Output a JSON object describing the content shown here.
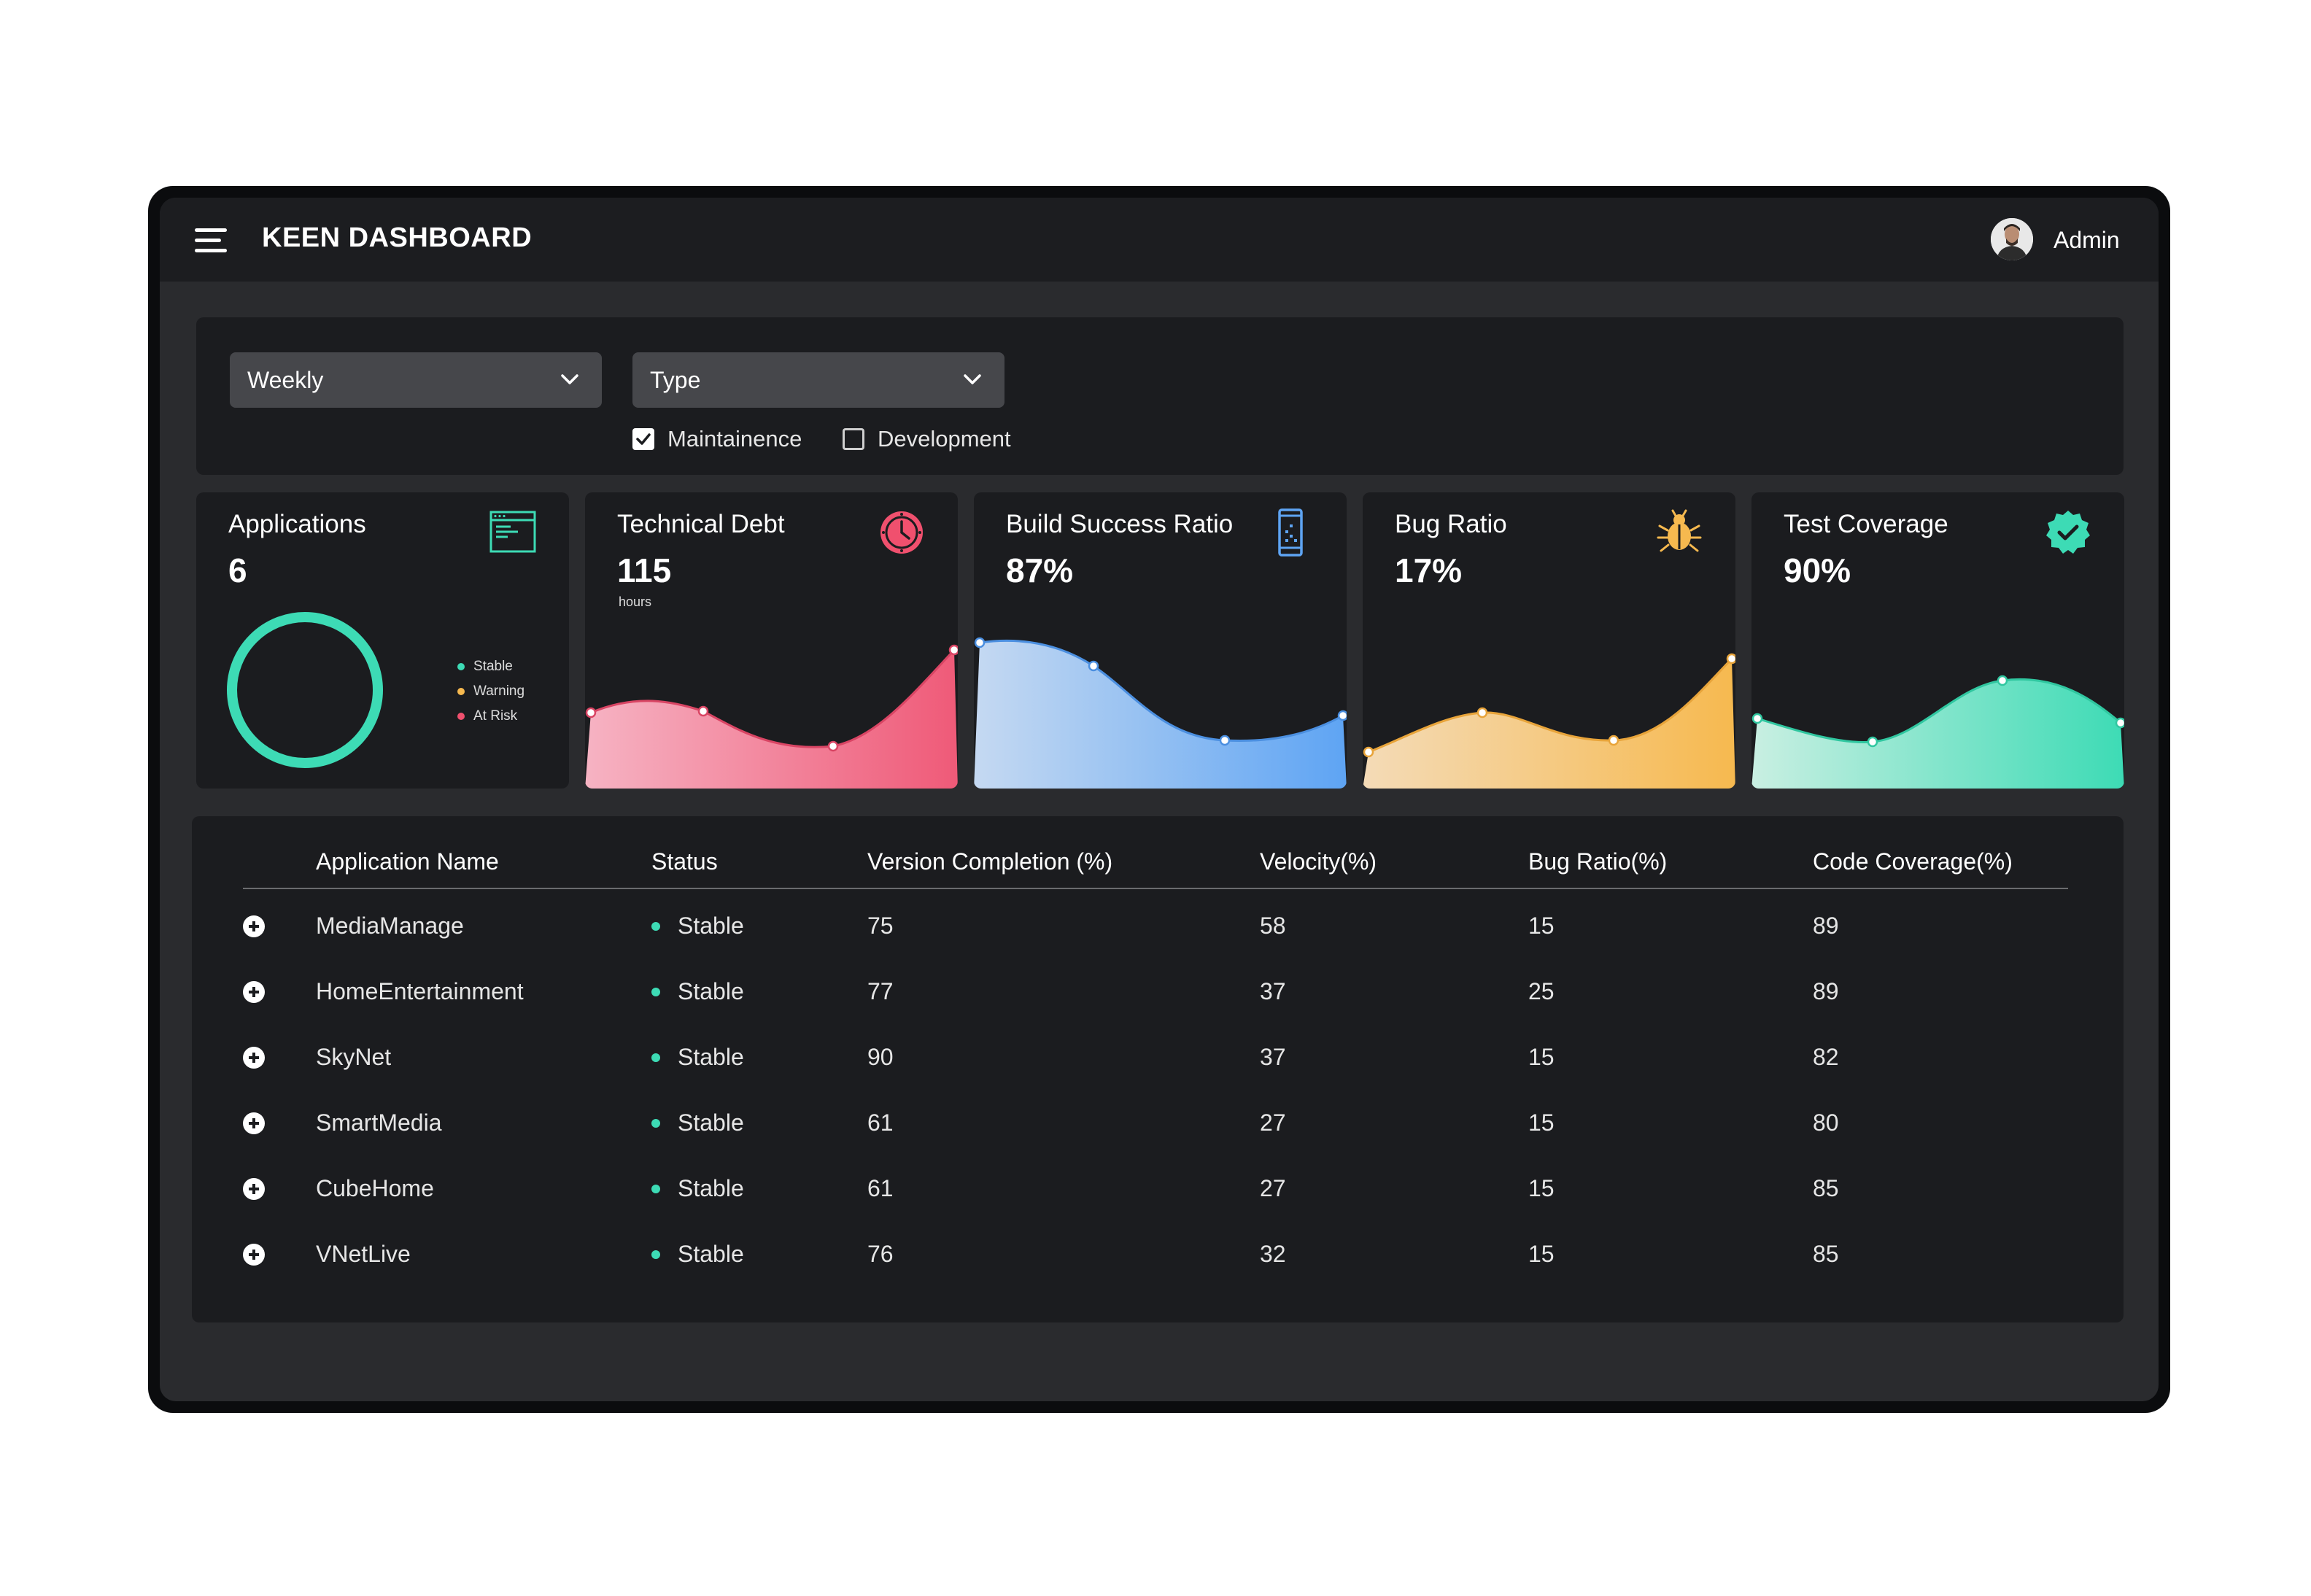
{
  "header": {
    "title": "KEEN DASHBOARD",
    "user": "Admin"
  },
  "filters": {
    "period": "Weekly",
    "type": "Type",
    "checkboxes": [
      {
        "label": "Maintainence",
        "checked": true
      },
      {
        "label": "Development",
        "checked": false
      }
    ]
  },
  "cards": {
    "applications": {
      "title": "Applications",
      "value": "6",
      "legend": [
        {
          "label": "Stable",
          "color": "#3ddbb5"
        },
        {
          "label": "Warning",
          "color": "#f6b94f"
        },
        {
          "label": "At Risk",
          "color": "#f0506e"
        }
      ],
      "ring_color": "#3ddbb5",
      "icon": "browser-window-icon"
    },
    "technical_debt": {
      "title": "Technical Debt",
      "value": "115",
      "unit": "hours",
      "icon": "clock-icon",
      "color": "#f0506e"
    },
    "build_success": {
      "title": "Build Success Ratio",
      "value": "87%",
      "icon": "mobile-icon",
      "color": "#5ea4f3"
    },
    "bug_ratio": {
      "title": "Bug Ratio",
      "value": "17%",
      "icon": "bug-icon",
      "color": "#f6b94f"
    },
    "test_coverage": {
      "title": "Test Coverage",
      "value": "90%",
      "icon": "check-badge-icon",
      "color": "#3ddbb5"
    }
  },
  "table": {
    "columns": [
      "Application Name",
      "Status",
      "Version Completion (%)",
      "Velocity(%)",
      "Bug Ratio(%)",
      "Code Coverage(%)"
    ],
    "rows": [
      {
        "name": "MediaManage",
        "status": "Stable",
        "version": "75",
        "velocity": "58",
        "bug": "15",
        "coverage": "89"
      },
      {
        "name": "HomeEntertainment",
        "status": "Stable",
        "version": "77",
        "velocity": "37",
        "bug": "25",
        "coverage": "89"
      },
      {
        "name": "SkyNet",
        "status": "Stable",
        "version": "90",
        "velocity": "37",
        "bug": "15",
        "coverage": "82"
      },
      {
        "name": "SmartMedia",
        "status": "Stable",
        "version": "61",
        "velocity": "27",
        "bug": "15",
        "coverage": "80"
      },
      {
        "name": "CubeHome",
        "status": "Stable",
        "version": "61",
        "velocity": "27",
        "bug": "15",
        "coverage": "85"
      },
      {
        "name": "VNetLive",
        "status": "Stable",
        "version": "76",
        "velocity": "32",
        "bug": "15",
        "coverage": "85"
      }
    ]
  }
}
